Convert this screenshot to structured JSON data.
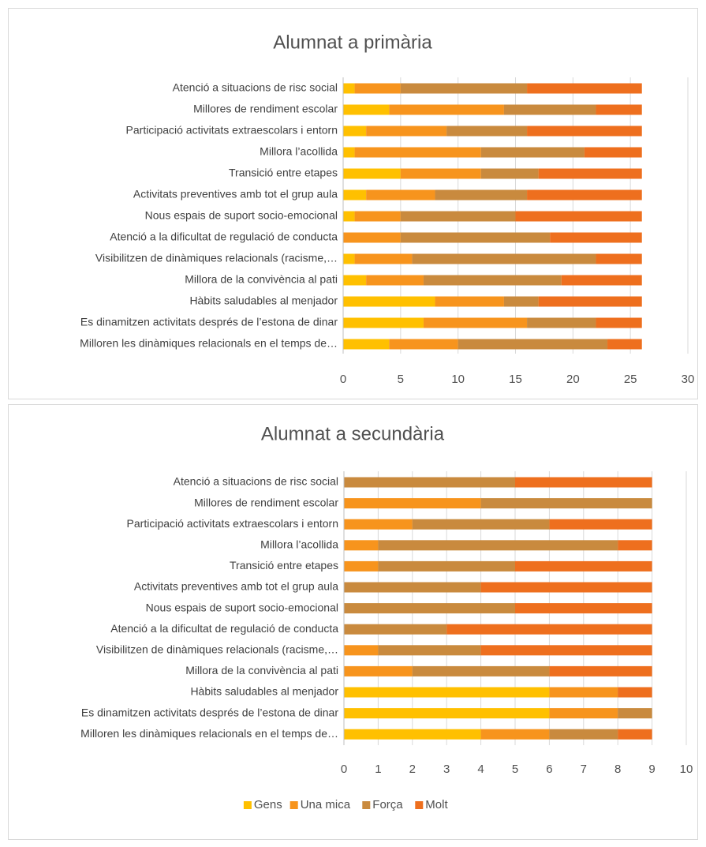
{
  "chart_data": [
    {
      "type": "bar",
      "orientation": "horizontal",
      "stacked": true,
      "title": "Alumnat a primària",
      "categories": [
        "Atenció a situacions de risc social",
        "Millores de rendiment escolar",
        "Participació activitats extraescolars i entorn",
        "Millora l’acollida",
        "Transició entre etapes",
        "Activitats preventives amb tot el grup aula",
        "Nous espais de suport socio-emocional",
        "Atenció a la dificultat de regulació de conducta",
        "Visibilitzen de dinàmiques relacionals (racisme,…",
        "Millora de la convivència al pati",
        "Hàbits saludables al menjador",
        "Es dinamitzen activitats després de l’estona de dinar",
        "Milloren les dinàmiques relacionals en el temps de…"
      ],
      "series": [
        {
          "name": "Gens",
          "color": "#ffc000",
          "values": [
            1,
            4,
            2,
            1,
            5,
            2,
            1,
            0,
            1,
            2,
            8,
            7,
            4
          ]
        },
        {
          "name": "Una mica",
          "color": "#f7941d",
          "values": [
            4,
            10,
            7,
            11,
            7,
            6,
            4,
            5,
            5,
            5,
            6,
            9,
            6
          ]
        },
        {
          "name": "Força",
          "color": "#c98a3e",
          "values": [
            11,
            8,
            7,
            9,
            5,
            8,
            10,
            13,
            16,
            12,
            3,
            6,
            13
          ]
        },
        {
          "name": "Molt",
          "color": "#ee6f1e",
          "values": [
            10,
            4,
            10,
            5,
            9,
            10,
            11,
            8,
            4,
            7,
            9,
            4,
            3
          ]
        }
      ],
      "xlim": [
        0,
        30
      ],
      "xticks": [
        0,
        5,
        10,
        15,
        20,
        25,
        30
      ],
      "grid": true
    },
    {
      "type": "bar",
      "orientation": "horizontal",
      "stacked": true,
      "title": "Alumnat a secundària",
      "categories": [
        "Atenció a situacions de risc social",
        "Millores de rendiment escolar",
        "Participació activitats extraescolars i entorn",
        "Millora l’acollida",
        "Transició entre etapes",
        "Activitats preventives amb tot el grup aula",
        "Nous espais de suport socio-emocional",
        "Atenció a la dificultat de regulació de conducta",
        "Visibilitzen de dinàmiques relacionals (racisme,…",
        "Millora de la convivència al pati",
        "Hàbits saludables al menjador",
        "Es dinamitzen activitats després de l’estona de dinar",
        "Milloren les dinàmiques relacionals en el temps de…"
      ],
      "series": [
        {
          "name": "Gens",
          "color": "#ffc000",
          "values": [
            0,
            0,
            0,
            0,
            0,
            0,
            0,
            0,
            0,
            0,
            6,
            6,
            4
          ]
        },
        {
          "name": "Una mica",
          "color": "#f7941d",
          "values": [
            0,
            4,
            2,
            1,
            1,
            0,
            0,
            0,
            1,
            2,
            2,
            2,
            2
          ]
        },
        {
          "name": "Força",
          "color": "#c98a3e",
          "values": [
            5,
            5,
            4,
            7,
            4,
            4,
            5,
            3,
            3,
            4,
            0,
            1,
            2
          ]
        },
        {
          "name": "Molt",
          "color": "#ee6f1e",
          "values": [
            4,
            0,
            3,
            1,
            4,
            5,
            4,
            6,
            5,
            3,
            1,
            0,
            1
          ]
        }
      ],
      "xlim": [
        0,
        10
      ],
      "xticks": [
        0,
        1,
        2,
        3,
        4,
        5,
        6,
        7,
        8,
        9,
        10
      ],
      "grid": true,
      "legend": "bottom"
    }
  ]
}
